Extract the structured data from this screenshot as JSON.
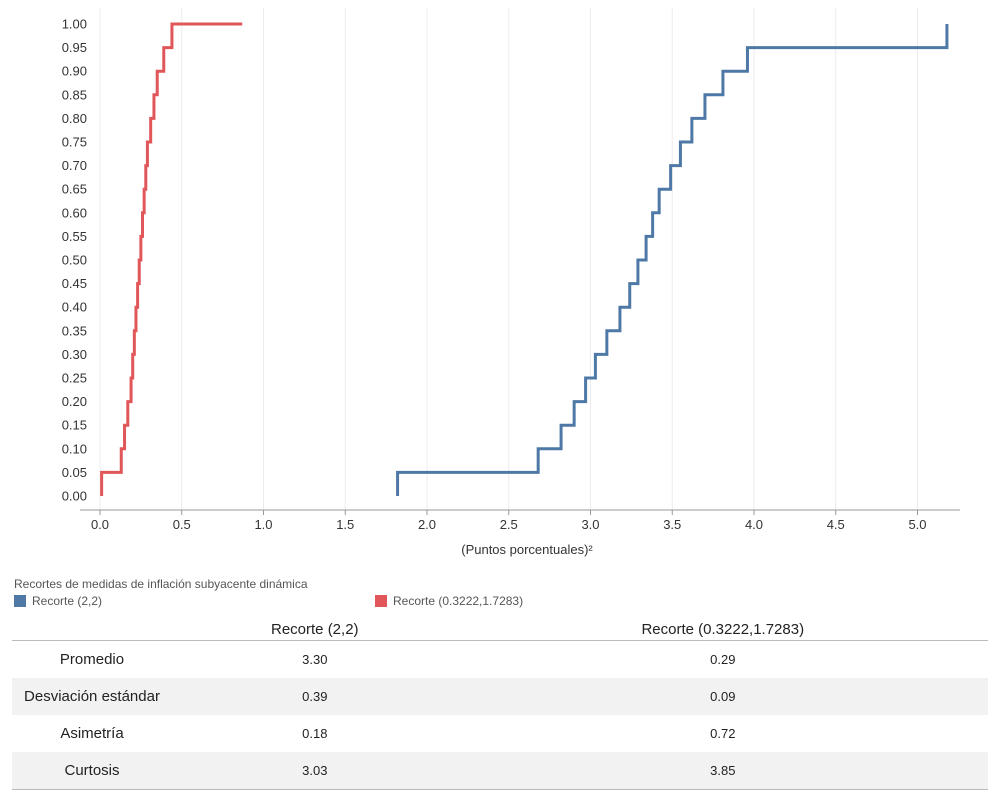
{
  "chart_data": {
    "type": "line",
    "step": true,
    "xlabel": "(Puntos porcentuales)²",
    "ylabel": "",
    "xlim": [
      -0.05,
      5.3
    ],
    "ylim": [
      0,
      1
    ],
    "xticks": [
      "0.0",
      "0.5",
      "1.0",
      "1.5",
      "2.0",
      "2.5",
      "3.0",
      "3.5",
      "4.0",
      "4.5",
      "5.0"
    ],
    "yticks": [
      "0.00",
      "0.05",
      "0.10",
      "0.15",
      "0.20",
      "0.25",
      "0.30",
      "0.35",
      "0.40",
      "0.45",
      "0.50",
      "0.55",
      "0.60",
      "0.65",
      "0.70",
      "0.75",
      "0.80",
      "0.85",
      "0.90",
      "0.95",
      "1.00"
    ],
    "grid": "vertical",
    "legend_title": "Recortes de medidas de inflación subyacente dinámica",
    "series": [
      {
        "name": "Recorte (2,2)",
        "color": "#4e79a7",
        "x": [
          1.82,
          2.68,
          2.82,
          2.9,
          2.97,
          3.03,
          3.1,
          3.18,
          3.24,
          3.29,
          3.34,
          3.38,
          3.42,
          3.49,
          3.55,
          3.62,
          3.7,
          3.81,
          3.96,
          5.18
        ],
        "y": [
          0.05,
          0.1,
          0.15,
          0.2,
          0.25,
          0.3,
          0.35,
          0.4,
          0.45,
          0.5,
          0.55,
          0.6,
          0.65,
          0.7,
          0.75,
          0.8,
          0.85,
          0.9,
          0.95,
          1.0
        ]
      },
      {
        "name": "Recorte (0.3222,1.7283)",
        "color": "#e15759",
        "x": [
          0.01,
          0.13,
          0.15,
          0.17,
          0.19,
          0.2,
          0.21,
          0.22,
          0.23,
          0.24,
          0.25,
          0.26,
          0.27,
          0.28,
          0.29,
          0.31,
          0.33,
          0.35,
          0.39,
          0.44,
          0.87
        ],
        "y": [
          0.05,
          0.1,
          0.15,
          0.2,
          0.25,
          0.3,
          0.35,
          0.4,
          0.45,
          0.5,
          0.55,
          0.6,
          0.65,
          0.7,
          0.75,
          0.8,
          0.85,
          0.9,
          0.95,
          1.0,
          1.0
        ]
      }
    ]
  },
  "table": {
    "headers": [
      "",
      "Recorte (2,2)",
      "Recorte (0.3222,1.7283)"
    ],
    "rows": [
      {
        "label": "Promedio",
        "a": "3.30",
        "b": "0.29"
      },
      {
        "label": "Desviación estándar",
        "a": "0.39",
        "b": "0.09"
      },
      {
        "label": "Asimetría",
        "a": "0.18",
        "b": "0.72"
      },
      {
        "label": "Curtosis",
        "a": "3.03",
        "b": "3.85"
      }
    ]
  }
}
